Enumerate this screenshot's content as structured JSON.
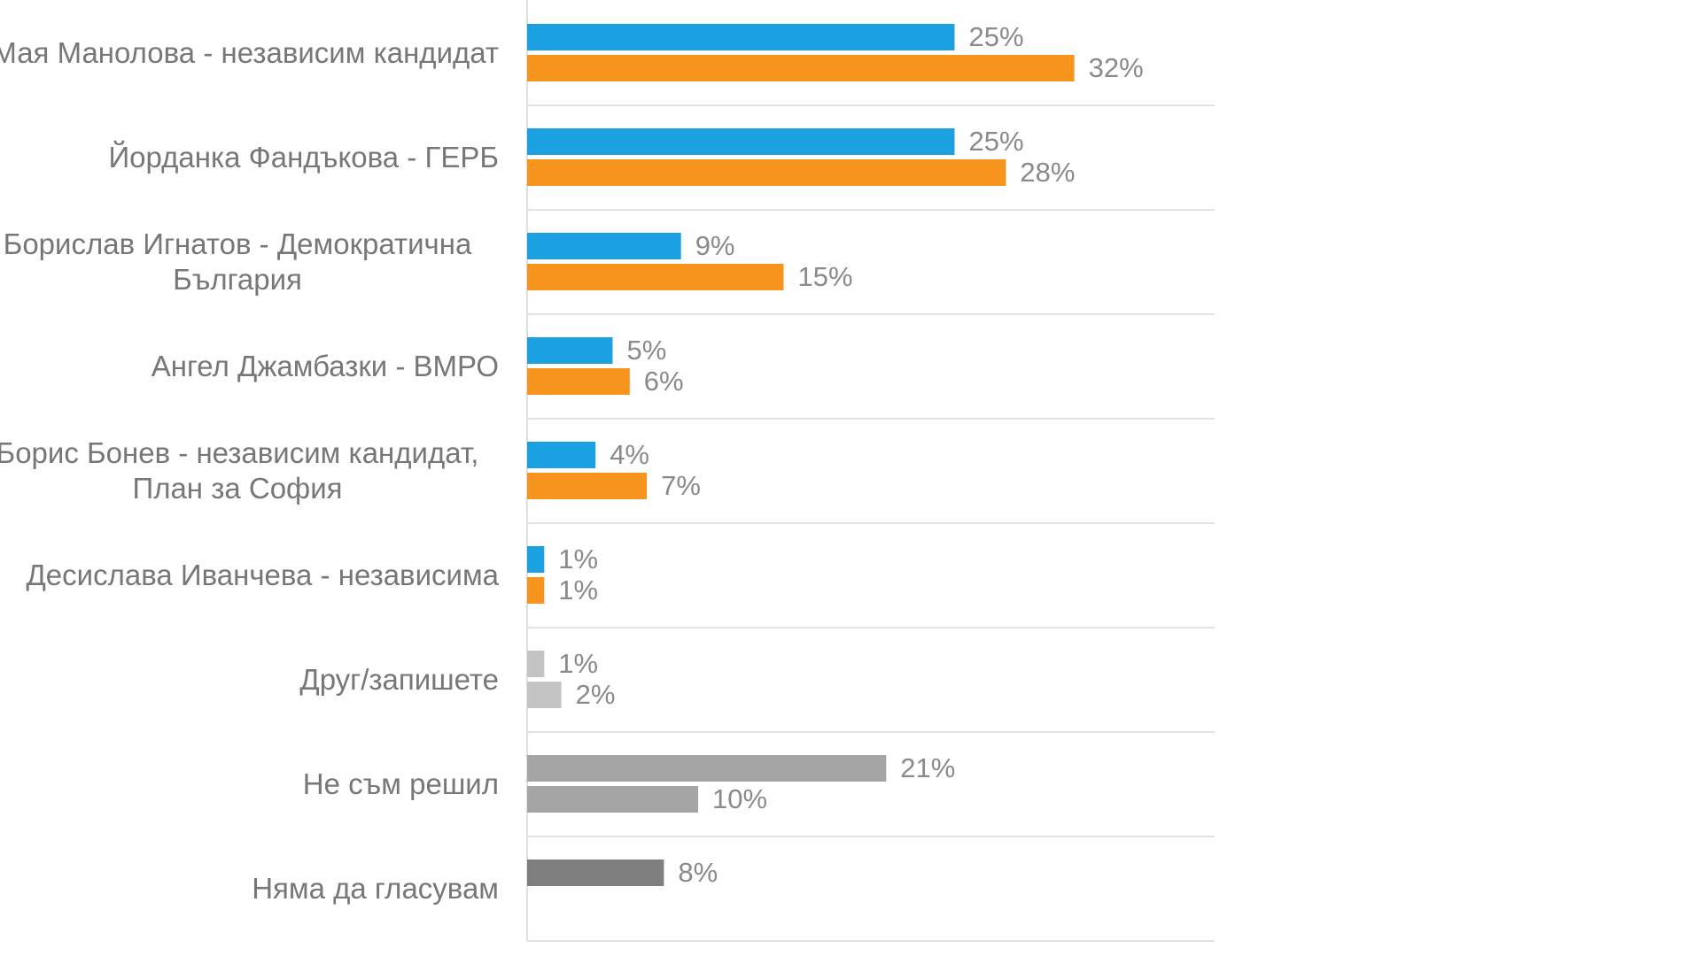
{
  "chart_data": {
    "type": "bar",
    "orientation": "horizontal",
    "categories": [
      "Мая Манолова - независим кандидат",
      "Йорданка Фандъкова - ГЕРБ",
      "Борислав Игнатов - Демократична България",
      "Ангел Джамбазки - ВМРО",
      "Борис Бонев - независим кандидат, План за София",
      "Десислава Иванчева - независима",
      "Друг/запишете",
      "Не съм решил",
      "Няма да гласувам"
    ],
    "series": [
      {
        "colors": [
          "#1ba1e2",
          "#1ba1e2",
          "#1ba1e2",
          "#1ba1e2",
          "#1ba1e2",
          "#1ba1e2",
          "#c4c4c4",
          "#a5a5a5",
          "#7f7f7f"
        ],
        "values": [
          25,
          25,
          9,
          5,
          4,
          1,
          1,
          21,
          8
        ],
        "value_labels": [
          "25%",
          "25%",
          "9%",
          "5%",
          "4%",
          "1%",
          "1%",
          "21%",
          "8%"
        ]
      },
      {
        "colors": [
          "#f7941d",
          "#f7941d",
          "#f7941d",
          "#f7941d",
          "#f7941d",
          "#f7941d",
          "#c4c4c4",
          "#a5a5a5",
          null
        ],
        "values": [
          32,
          28,
          15,
          6,
          7,
          1,
          2,
          10,
          null
        ],
        "value_labels": [
          "32%",
          "28%",
          "15%",
          "6%",
          "7%",
          "1%",
          "2%",
          "10%",
          null
        ]
      }
    ],
    "xlim": [
      0,
      40
    ],
    "grid": true
  }
}
